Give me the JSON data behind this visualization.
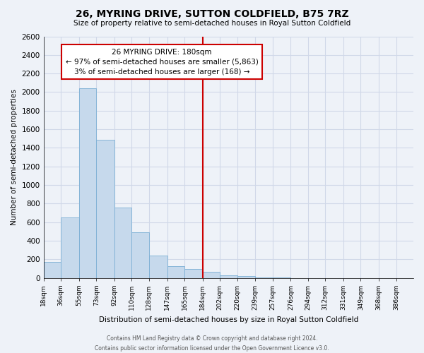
{
  "title": "26, MYRING DRIVE, SUTTON COLDFIELD, B75 7RZ",
  "subtitle": "Size of property relative to semi-detached houses in Royal Sutton Coldfield",
  "xlabel": "Distribution of semi-detached houses by size in Royal Sutton Coldfield",
  "ylabel": "Number of semi-detached properties",
  "bin_labels": [
    "18sqm",
    "36sqm",
    "55sqm",
    "73sqm",
    "92sqm",
    "110sqm",
    "128sqm",
    "147sqm",
    "165sqm",
    "184sqm",
    "202sqm",
    "220sqm",
    "239sqm",
    "257sqm",
    "276sqm",
    "294sqm",
    "312sqm",
    "331sqm",
    "349sqm",
    "368sqm",
    "386sqm"
  ],
  "bin_edges": [
    18,
    36,
    55,
    73,
    92,
    110,
    128,
    147,
    165,
    184,
    202,
    220,
    239,
    257,
    276,
    294,
    312,
    331,
    349,
    368,
    386
  ],
  "bar_heights": [
    170,
    650,
    2040,
    1490,
    760,
    490,
    245,
    130,
    100,
    65,
    30,
    20,
    5,
    3,
    2,
    1,
    1,
    0,
    0,
    0
  ],
  "bar_color": "#c6d9ec",
  "bar_edge_color": "#7bafd4",
  "marker_value": 184,
  "marker_color": "#cc0000",
  "ylim": [
    0,
    2600
  ],
  "yticks": [
    0,
    200,
    400,
    600,
    800,
    1000,
    1200,
    1400,
    1600,
    1800,
    2000,
    2200,
    2400,
    2600
  ],
  "annotation_title": "26 MYRING DRIVE: 180sqm",
  "annotation_line1": "← 97% of semi-detached houses are smaller (5,863)",
  "annotation_line2": "3% of semi-detached houses are larger (168) →",
  "ann_box_color": "#cc0000",
  "footnote1": "Contains HM Land Registry data © Crown copyright and database right 2024.",
  "footnote2": "Contains public sector information licensed under the Open Government Licence v3.0.",
  "background_color": "#eef2f8",
  "grid_color": "#d0d8e8"
}
